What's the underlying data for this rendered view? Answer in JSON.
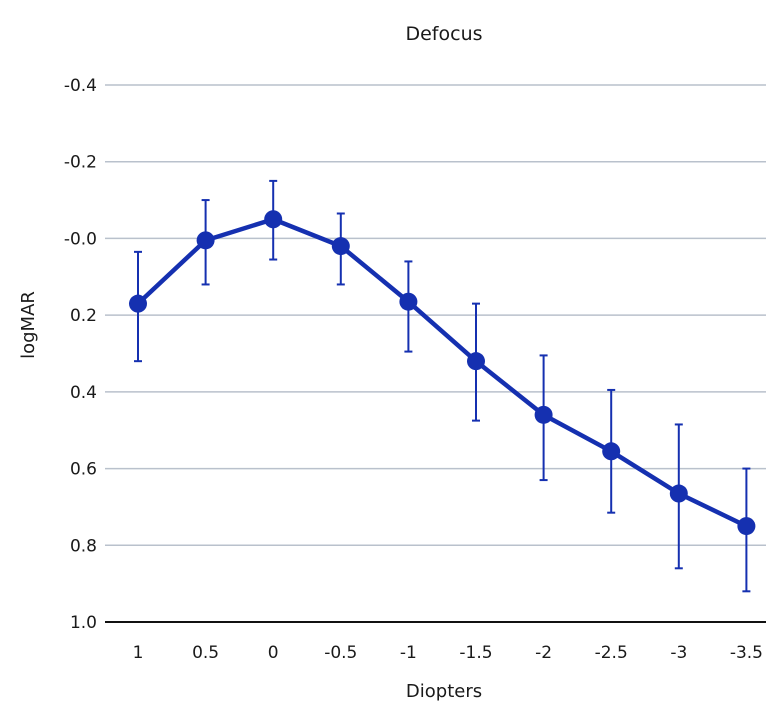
{
  "chart_data": {
    "type": "line",
    "title": "Defocus",
    "xlabel": "Diopters",
    "ylabel": "logMAR",
    "categories": [
      "1",
      "0.5",
      "0",
      "-0.5",
      "-1",
      "-1.5",
      "-2",
      "-2.5",
      "-3",
      "-3.5"
    ],
    "y_ticks": [
      "-0.4",
      "-0.2",
      "-0.0",
      "0.2",
      "0.4",
      "0.6",
      "0.8",
      "1.0"
    ],
    "y_tick_values": [
      -0.4,
      -0.2,
      0.0,
      0.2,
      0.4,
      0.6,
      0.8,
      1.0
    ],
    "ylim": [
      -0.4,
      1.0
    ],
    "y_inverted": true,
    "grid": true,
    "legend": "none",
    "series": [
      {
        "values": [
          0.17,
          0.005,
          -0.05,
          0.02,
          0.165,
          0.32,
          0.46,
          0.555,
          0.665,
          0.75
        ],
        "error_low": [
          0.32,
          0.12,
          0.055,
          0.12,
          0.295,
          0.475,
          0.63,
          0.715,
          0.86,
          0.92
        ],
        "error_high": [
          0.035,
          -0.1,
          -0.15,
          -0.065,
          0.06,
          0.17,
          0.305,
          0.395,
          0.485,
          0.6
        ],
        "color": "#1530b0"
      }
    ]
  }
}
